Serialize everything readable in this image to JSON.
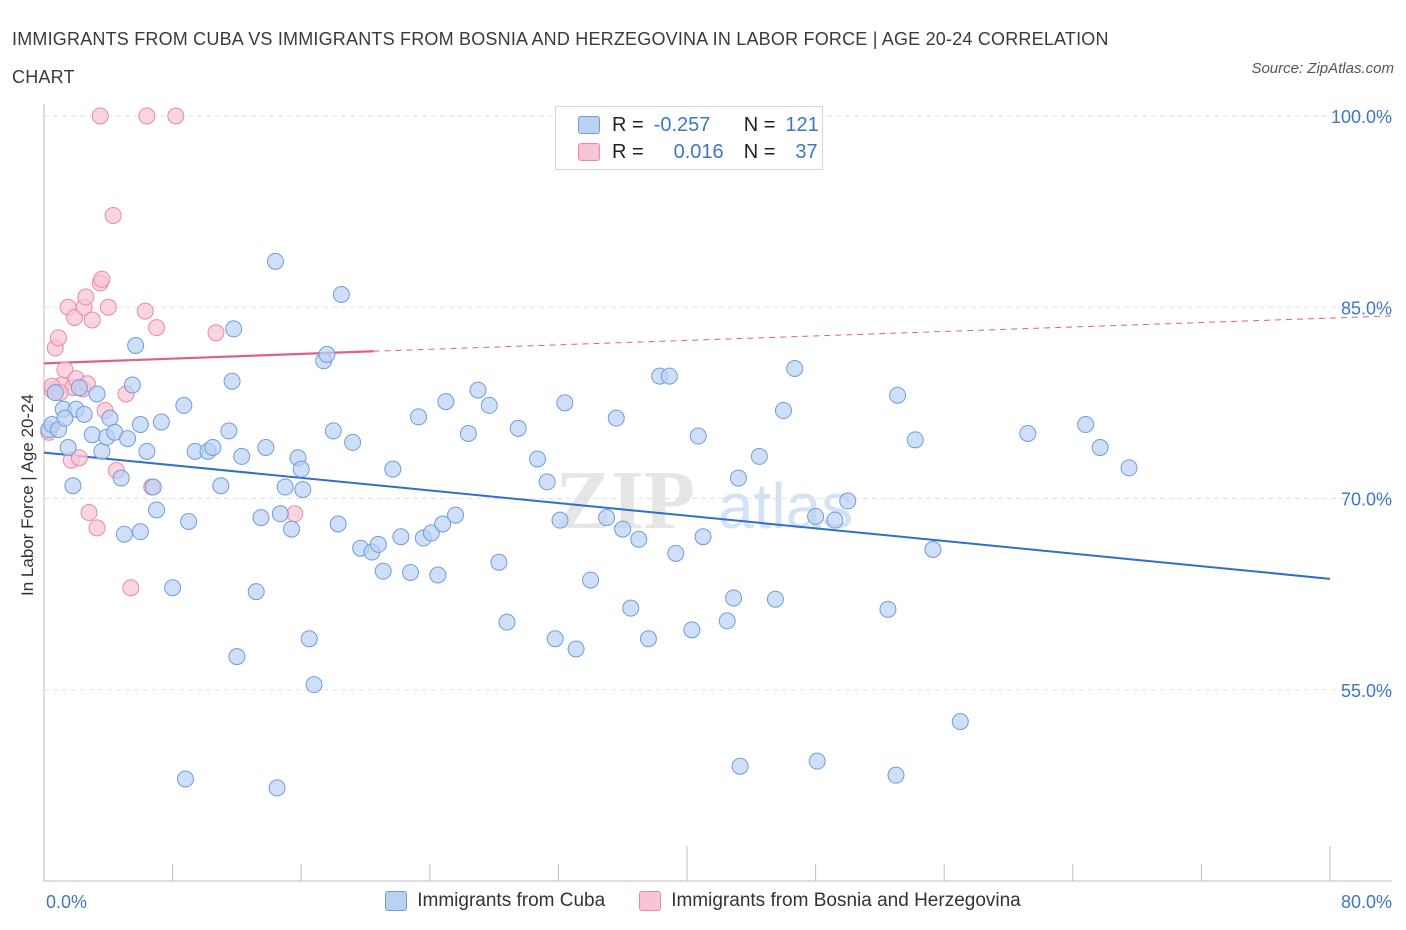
{
  "title": "IMMIGRANTS FROM CUBA VS IMMIGRANTS FROM BOSNIA AND HERZEGOVINA IN LABOR FORCE | AGE 20-24 CORRELATION CHART",
  "source": "Source: ZipAtlas.com",
  "watermark": {
    "zip": "ZIP",
    "atlas": "atlas"
  },
  "legend": [
    {
      "r_label": "R =",
      "r_value": "-0.257",
      "n_label": "N =",
      "n_value": "121"
    },
    {
      "r_label": "R =",
      "r_value": "0.016",
      "n_label": "N =",
      "n_value": "37"
    }
  ],
  "bottom_legend": [
    "Immigrants from Cuba",
    "Immigrants from Bosnia and Herzegovina"
  ],
  "colors": {
    "cuba_fill": "#b9d2f3",
    "cuba_stroke": "#6f9ddb",
    "cuba_line": "#2f6fcc",
    "bosnia_fill": "#f8c5d5",
    "bosnia_stroke": "#e88aa6",
    "bosnia_line": "#e0608a",
    "tick_label": "#3d78c4",
    "grid": "#e2e2e2"
  },
  "chart_data": {
    "type": "scatter",
    "title": "IMMIGRANTS FROM CUBA VS IMMIGRANTS FROM BOSNIA AND HERZEGOVINA IN LABOR FORCE | AGE 20-24 CORRELATION CHART",
    "xlabel": "",
    "ylabel": "In Labor Force | Age 20-24",
    "xlim": [
      0,
      80
    ],
    "ylim": [
      40,
      100
    ],
    "x_tick_labels": [
      "0.0%",
      "80.0%"
    ],
    "y_ticks": [
      55,
      70,
      85,
      100
    ],
    "y_tick_labels": [
      "55.0%",
      "70.0%",
      "85.0%",
      "100.0%"
    ],
    "grid": true,
    "legend_placement": "top-center",
    "series": [
      {
        "name": "Immigrants from Cuba",
        "R": -0.257,
        "N": 121,
        "trend": {
          "x": [
            0,
            80
          ],
          "y": [
            73.6,
            63.7
          ]
        },
        "points": [
          [
            0.3,
            75.4
          ],
          [
            0.5,
            75.8
          ],
          [
            0.7,
            78.3
          ],
          [
            0.9,
            75.4
          ],
          [
            1.2,
            77.0
          ],
          [
            1.5,
            74.0
          ],
          [
            1.8,
            71.0
          ],
          [
            2.0,
            77.0
          ],
          [
            2.2,
            78.7
          ],
          [
            2.5,
            76.6
          ],
          [
            3.0,
            75.0
          ],
          [
            3.3,
            78.2
          ],
          [
            3.6,
            73.7
          ],
          [
            3.9,
            74.8
          ],
          [
            4.1,
            76.3
          ],
          [
            4.4,
            75.2
          ],
          [
            4.8,
            71.6
          ],
          [
            5.0,
            67.2
          ],
          [
            5.2,
            74.7
          ],
          [
            5.5,
            78.9
          ],
          [
            5.7,
            82.0
          ],
          [
            6.0,
            67.4
          ],
          [
            6.4,
            73.7
          ],
          [
            6.8,
            70.9
          ],
          [
            7.0,
            69.1
          ],
          [
            7.3,
            76.0
          ],
          [
            8.0,
            63.0
          ],
          [
            8.7,
            77.3
          ],
          [
            9.0,
            68.2
          ],
          [
            9.4,
            73.7
          ],
          [
            10.2,
            73.7
          ],
          [
            10.5,
            74.0
          ],
          [
            11.0,
            71.0
          ],
          [
            11.5,
            75.3
          ],
          [
            11.7,
            79.2
          ],
          [
            11.8,
            83.3
          ],
          [
            12.0,
            57.6
          ],
          [
            12.3,
            73.3
          ],
          [
            13.2,
            62.7
          ],
          [
            13.5,
            68.5
          ],
          [
            13.8,
            74.0
          ],
          [
            14.4,
            88.6
          ],
          [
            14.7,
            68.8
          ],
          [
            15.4,
            67.6
          ],
          [
            15.8,
            73.2
          ],
          [
            16.0,
            72.3
          ],
          [
            16.1,
            70.7
          ],
          [
            16.5,
            59.0
          ],
          [
            16.8,
            55.4
          ],
          [
            17.4,
            80.8
          ],
          [
            17.6,
            81.3
          ],
          [
            18.0,
            75.3
          ],
          [
            18.3,
            68.0
          ],
          [
            18.5,
            86.0
          ],
          [
            19.2,
            74.4
          ],
          [
            19.7,
            66.1
          ],
          [
            20.4,
            65.8
          ],
          [
            20.8,
            66.4
          ],
          [
            21.1,
            64.3
          ],
          [
            21.7,
            72.3
          ],
          [
            22.2,
            67.0
          ],
          [
            22.8,
            64.2
          ],
          [
            23.3,
            76.4
          ],
          [
            23.6,
            66.9
          ],
          [
            24.1,
            67.3
          ],
          [
            24.5,
            64.0
          ],
          [
            24.8,
            68.0
          ],
          [
            25.0,
            77.6
          ],
          [
            25.6,
            68.7
          ],
          [
            26.4,
            75.1
          ],
          [
            27.0,
            78.5
          ],
          [
            27.7,
            77.3
          ],
          [
            28.3,
            65.0
          ],
          [
            28.8,
            60.3
          ],
          [
            29.5,
            75.5
          ],
          [
            30.7,
            73.1
          ],
          [
            31.3,
            71.3
          ],
          [
            31.8,
            59.0
          ],
          [
            32.1,
            68.3
          ],
          [
            32.4,
            77.5
          ],
          [
            33.1,
            58.2
          ],
          [
            34.0,
            63.6
          ],
          [
            35.0,
            68.5
          ],
          [
            35.6,
            76.3
          ],
          [
            36.0,
            67.6
          ],
          [
            36.5,
            61.4
          ],
          [
            37.0,
            66.8
          ],
          [
            37.6,
            59.0
          ],
          [
            38.3,
            79.6
          ],
          [
            38.9,
            79.6
          ],
          [
            39.3,
            65.7
          ],
          [
            40.3,
            59.7
          ],
          [
            40.7,
            74.9
          ],
          [
            41.0,
            67.0
          ],
          [
            42.5,
            60.4
          ],
          [
            42.9,
            62.2
          ],
          [
            43.2,
            71.6
          ],
          [
            44.5,
            73.3
          ],
          [
            45.5,
            62.1
          ],
          [
            46.0,
            76.9
          ],
          [
            46.7,
            80.2
          ],
          [
            48.0,
            68.6
          ],
          [
            49.2,
            68.3
          ],
          [
            50.0,
            69.8
          ],
          [
            52.5,
            61.3
          ],
          [
            53.1,
            78.1
          ],
          [
            54.2,
            74.6
          ],
          [
            55.3,
            66.0
          ],
          [
            57.0,
            52.5
          ],
          [
            61.2,
            75.1
          ],
          [
            64.8,
            75.8
          ],
          [
            65.7,
            74.0
          ],
          [
            67.5,
            72.4
          ],
          [
            43.3,
            49.0
          ],
          [
            53.0,
            48.3
          ],
          [
            48.1,
            49.4
          ],
          [
            8.8,
            48.0
          ],
          [
            14.5,
            47.3
          ],
          [
            1.3,
            76.3
          ],
          [
            6.0,
            75.8
          ],
          [
            15.0,
            70.9
          ]
        ]
      },
      {
        "name": "Immigrants from Bosnia and Herzegovina",
        "R": 0.016,
        "N": 37,
        "trend": {
          "x": [
            0,
            80
          ],
          "y": [
            80.6,
            84.3
          ]
        },
        "points": [
          [
            0.3,
            75.2
          ],
          [
            0.5,
            78.5
          ],
          [
            0.7,
            81.8
          ],
          [
            0.9,
            82.6
          ],
          [
            1.1,
            78.9
          ],
          [
            1.3,
            80.1
          ],
          [
            1.5,
            85.0
          ],
          [
            1.7,
            73.0
          ],
          [
            1.8,
            78.7
          ],
          [
            1.9,
            84.2
          ],
          [
            2.0,
            79.4
          ],
          [
            2.2,
            73.2
          ],
          [
            2.4,
            78.6
          ],
          [
            2.5,
            85.0
          ],
          [
            2.6,
            85.8
          ],
          [
            2.8,
            68.9
          ],
          [
            3.0,
            84.0
          ],
          [
            3.3,
            67.7
          ],
          [
            3.5,
            86.9
          ],
          [
            3.6,
            87.2
          ],
          [
            3.8,
            76.9
          ],
          [
            4.0,
            85.0
          ],
          [
            4.3,
            92.2
          ],
          [
            4.5,
            72.2
          ],
          [
            5.1,
            78.2
          ],
          [
            5.4,
            63.0
          ],
          [
            6.3,
            84.7
          ],
          [
            6.7,
            70.9
          ],
          [
            7.0,
            83.4
          ],
          [
            10.7,
            83.0
          ],
          [
            15.6,
            68.8
          ],
          [
            3.5,
            100.0
          ],
          [
            6.4,
            100.0
          ],
          [
            8.2,
            100.0
          ],
          [
            0.5,
            78.8
          ],
          [
            1.0,
            78.3
          ],
          [
            2.7,
            79.0
          ]
        ]
      }
    ]
  }
}
